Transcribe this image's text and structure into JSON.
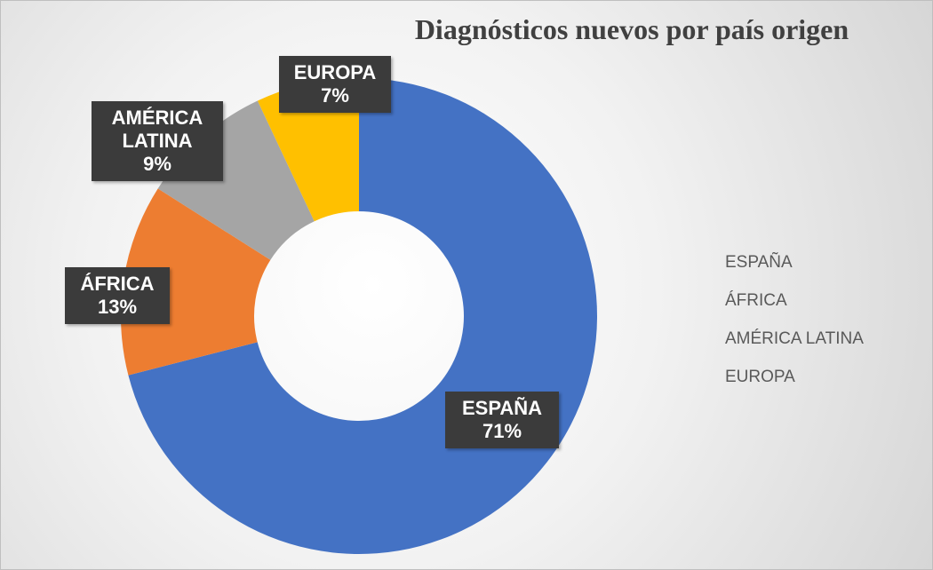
{
  "chart_data": {
    "type": "donut",
    "title": "Diagnósticos nuevos por país origen",
    "categories": [
      "ESPAÑA",
      "ÁFRICA",
      "AMÉRICA LATINA",
      "EUROPA"
    ],
    "values": [
      71,
      13,
      9,
      7
    ],
    "value_labels": [
      "71%",
      "13%",
      "9%",
      "7%"
    ],
    "colors": [
      "#4472c4",
      "#ed7d31",
      "#a5a5a5",
      "#ffc000"
    ],
    "legend": "right"
  }
}
